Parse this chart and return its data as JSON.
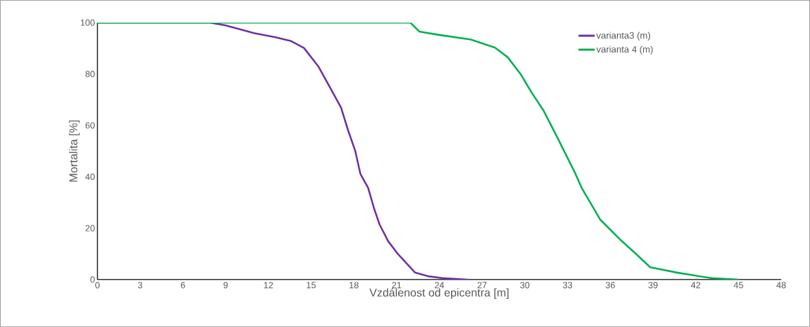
{
  "chart_data": {
    "type": "line",
    "xlabel": "Vzdálenost od epicentra [m]",
    "ylabel": "Mortalita [%]",
    "xlim": [
      0,
      48
    ],
    "xticks": [
      0,
      3,
      6,
      9,
      12,
      15,
      18,
      21,
      24,
      27,
      30,
      33,
      36,
      39,
      42,
      45,
      48
    ],
    "ylim": [
      0,
      100
    ],
    "yticks": [
      0,
      20,
      40,
      60,
      80,
      100
    ],
    "grid": false,
    "legend": "top right",
    "marker": "none",
    "line_style": "solid",
    "series": [
      {
        "name": "varianta3 (m)",
        "color": "#7030a0",
        "x": [
          0,
          7.9,
          9,
          11,
          12.5,
          13.6,
          14.5,
          15.5,
          16.3,
          17.1,
          17.6,
          18.1,
          18.46,
          19.0,
          19.4,
          19.8,
          20.4,
          21.1,
          22.3,
          23.2,
          24.2,
          25,
          26
        ],
        "values": [
          100,
          100,
          98.9,
          95.9,
          94.3,
          92.8,
          90.1,
          83,
          75,
          66.9,
          58,
          50,
          41.1,
          35.7,
          28,
          21.5,
          15,
          9.9,
          2.7,
          1.3,
          0.6,
          0.3,
          0
        ]
      },
      {
        "name": "varianta 4 (m)",
        "color": "#00b050",
        "x": [
          0,
          21.96,
          22.6,
          24,
          26.2,
          27.9,
          28.8,
          29.7,
          30.5,
          31.3,
          32.4,
          33.5,
          34.0,
          35.3,
          36.8,
          37.8,
          38.8,
          40.7,
          42,
          43.1,
          45
        ],
        "values": [
          100,
          100,
          96.5,
          95.2,
          93.4,
          90.3,
          86.5,
          80,
          72.6,
          65.9,
          54,
          41.8,
          35.6,
          23.3,
          15,
          10,
          4.8,
          2.7,
          1.5,
          0.6,
          0
        ]
      }
    ]
  }
}
